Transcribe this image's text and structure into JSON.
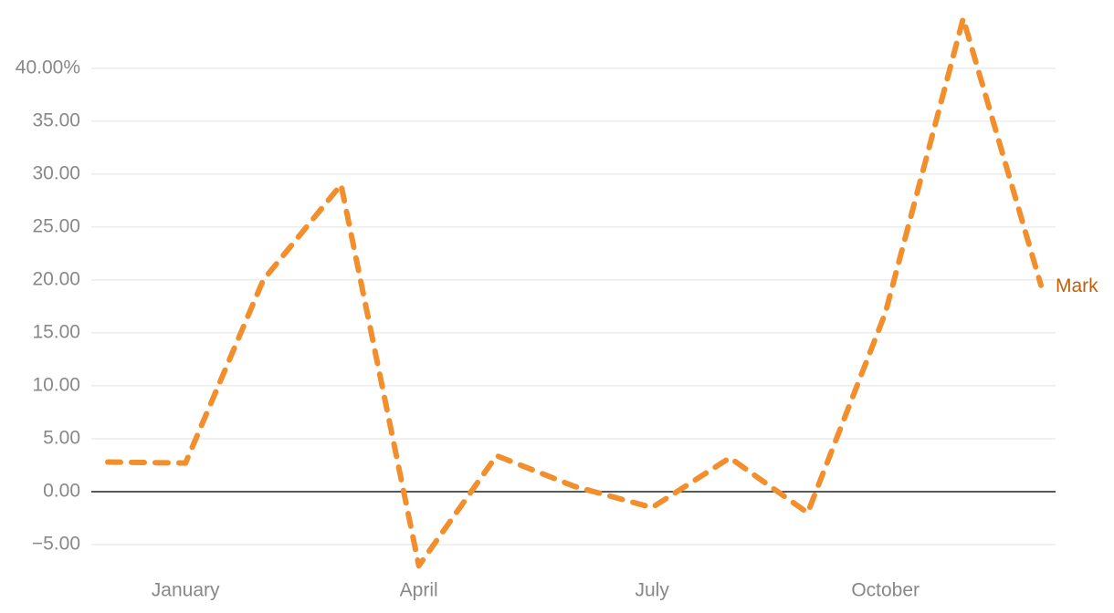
{
  "chart_data": {
    "type": "line",
    "categories": [
      null,
      "January",
      null,
      null,
      "April",
      null,
      null,
      "July",
      null,
      null,
      "October",
      null,
      null
    ],
    "series": [
      {
        "name": "Mark",
        "color": "#f28e2b",
        "label_color": "#c0600a",
        "values": [
          2.8,
          2.7,
          20,
          29,
          -7,
          3.4,
          0.5,
          -1.5,
          3.2,
          -2,
          16.9,
          44.7,
          19.5
        ]
      }
    ],
    "ylim": [
      -7.5,
      45.5
    ],
    "yticks": [
      {
        "value": -5,
        "label": "−5.00"
      },
      {
        "value": 0,
        "label": "0.00"
      },
      {
        "value": 5,
        "label": "5.00"
      },
      {
        "value": 10,
        "label": "10.00"
      },
      {
        "value": 15,
        "label": "15.00"
      },
      {
        "value": 20,
        "label": "20.00"
      },
      {
        "value": 25,
        "label": "25.00"
      },
      {
        "value": 30,
        "label": "30.00"
      },
      {
        "value": 35,
        "label": "35.00"
      },
      {
        "value": 40,
        "label": "40.00%"
      }
    ],
    "grid": true,
    "line_style": "dashed"
  }
}
